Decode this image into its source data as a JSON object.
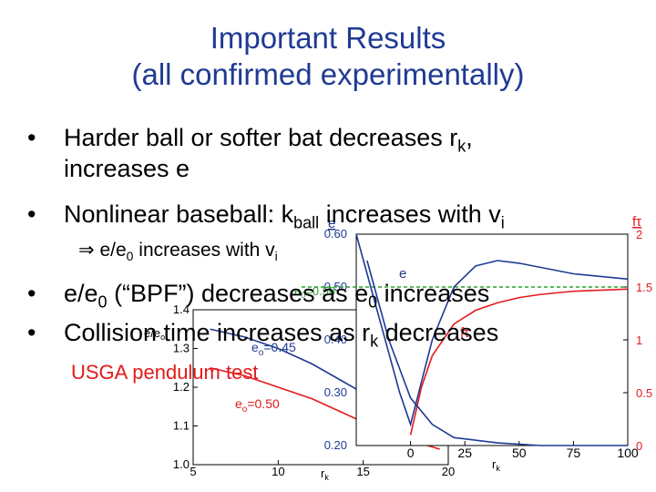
{
  "title_line1": "Important Results",
  "title_line2": "(all confirmed experimentally)",
  "bullet_glyph": "•",
  "bullets": {
    "b1_pre": "Harder ball or softer bat decreases r",
    "b1_sub": "k",
    "b1_post": ",",
    "b1_line2": "increases e",
    "b2_pre": "Nonlinear baseball:  k",
    "b2_sub": "ball",
    "b2_mid": " increases with v",
    "b2_sub2": "i",
    "sub_arrow": "⇒",
    "sub_pre": " e/e",
    "sub_sub": "0",
    "sub_post": " increases with v",
    "sub_sub2": "i",
    "b3_pre": "e/e",
    "b3_sub": "0",
    "b3_mid": " (“BPF”) decreases as e",
    "b3_sub2": "0",
    "b3_post": " increases",
    "b4_pre": "Collision time increases as r",
    "b4_sub": "k",
    "b4_post": " decreases"
  },
  "usga_label": "USGA pendulum test",
  "chart_data": [
    {
      "type": "line",
      "xlabel": "r",
      "xlabel_sub": "k",
      "ylabel": "e/e",
      "ylabel_sub": "o",
      "xlim": [
        5,
        20
      ],
      "ylim": [
        1.0,
        1.4
      ],
      "x_ticks": [
        "5",
        "10",
        "15",
        "20"
      ],
      "y_ticks": [
        "1.0",
        "1.1",
        "1.2",
        "1.3",
        "1.4"
      ],
      "series": [
        {
          "name": "e",
          "label_sub": "o",
          "label_post": "=0.45",
          "color": "#1f3a93",
          "x": [
            6,
            8,
            10,
            12,
            14,
            16,
            18,
            19.5
          ],
          "y": [
            1.35,
            1.33,
            1.3,
            1.26,
            1.21,
            1.16,
            1.12,
            1.09
          ]
        },
        {
          "name": "e",
          "label_sub": "o",
          "label_post": "=0.50",
          "color": "#e31a1c",
          "x": [
            6,
            8,
            10,
            12,
            14,
            16,
            18,
            19.5
          ],
          "y": [
            1.25,
            1.23,
            1.2,
            1.17,
            1.13,
            1.09,
            1.06,
            1.04
          ]
        }
      ]
    },
    {
      "type": "line",
      "xlabel": "r",
      "xlabel_sub": "k",
      "y_left_label": "e",
      "y_right_label": "fτ",
      "xlim": [
        -25,
        100
      ],
      "ylim_left": [
        0.2,
        0.6
      ],
      "ylim_right": [
        0,
        2
      ],
      "x_ticks": [
        "0",
        "25",
        "50",
        "75",
        "100"
      ],
      "y_left_ticks": [
        "0.20",
        "0.30",
        "0.40",
        "0.50",
        "0.60"
      ],
      "y_right_ticks": [
        "0",
        "0.5",
        "1",
        "1.5",
        "2"
      ],
      "reference_label": "e",
      "reference_sub": "0",
      "reference_post": "=0.50",
      "reference_value": 0.5,
      "series": [
        {
          "name": "e",
          "color": "#1f3a93",
          "x": [
            -25,
            -15,
            -5,
            0,
            5,
            10,
            20,
            30,
            40,
            50,
            75,
            100
          ],
          "y": [
            0.6,
            0.45,
            0.3,
            0.24,
            0.32,
            0.4,
            0.5,
            0.54,
            0.55,
            0.545,
            0.525,
            0.515
          ]
        },
        {
          "name": "fτ",
          "color": "#e31a1c",
          "x": [
            0,
            5,
            10,
            20,
            30,
            40,
            50,
            60,
            75,
            100
          ],
          "y": [
            0.1,
            0.55,
            0.85,
            1.15,
            1.28,
            1.35,
            1.4,
            1.43,
            1.46,
            1.48
          ]
        },
        {
          "name": "e",
          "color": "#1f3a93",
          "x": [
            -20,
            -10,
            0,
            10,
            20,
            40,
            60,
            80,
            100
          ],
          "y": [
            0.55,
            0.4,
            0.29,
            0.24,
            0.215,
            0.205,
            0.2,
            0.2,
            0.2
          ]
        }
      ],
      "series_labels": [
        {
          "text": "e",
          "color": "#1f3a93"
        },
        {
          "text": "fτ",
          "color": "#e31a1c"
        }
      ]
    }
  ]
}
